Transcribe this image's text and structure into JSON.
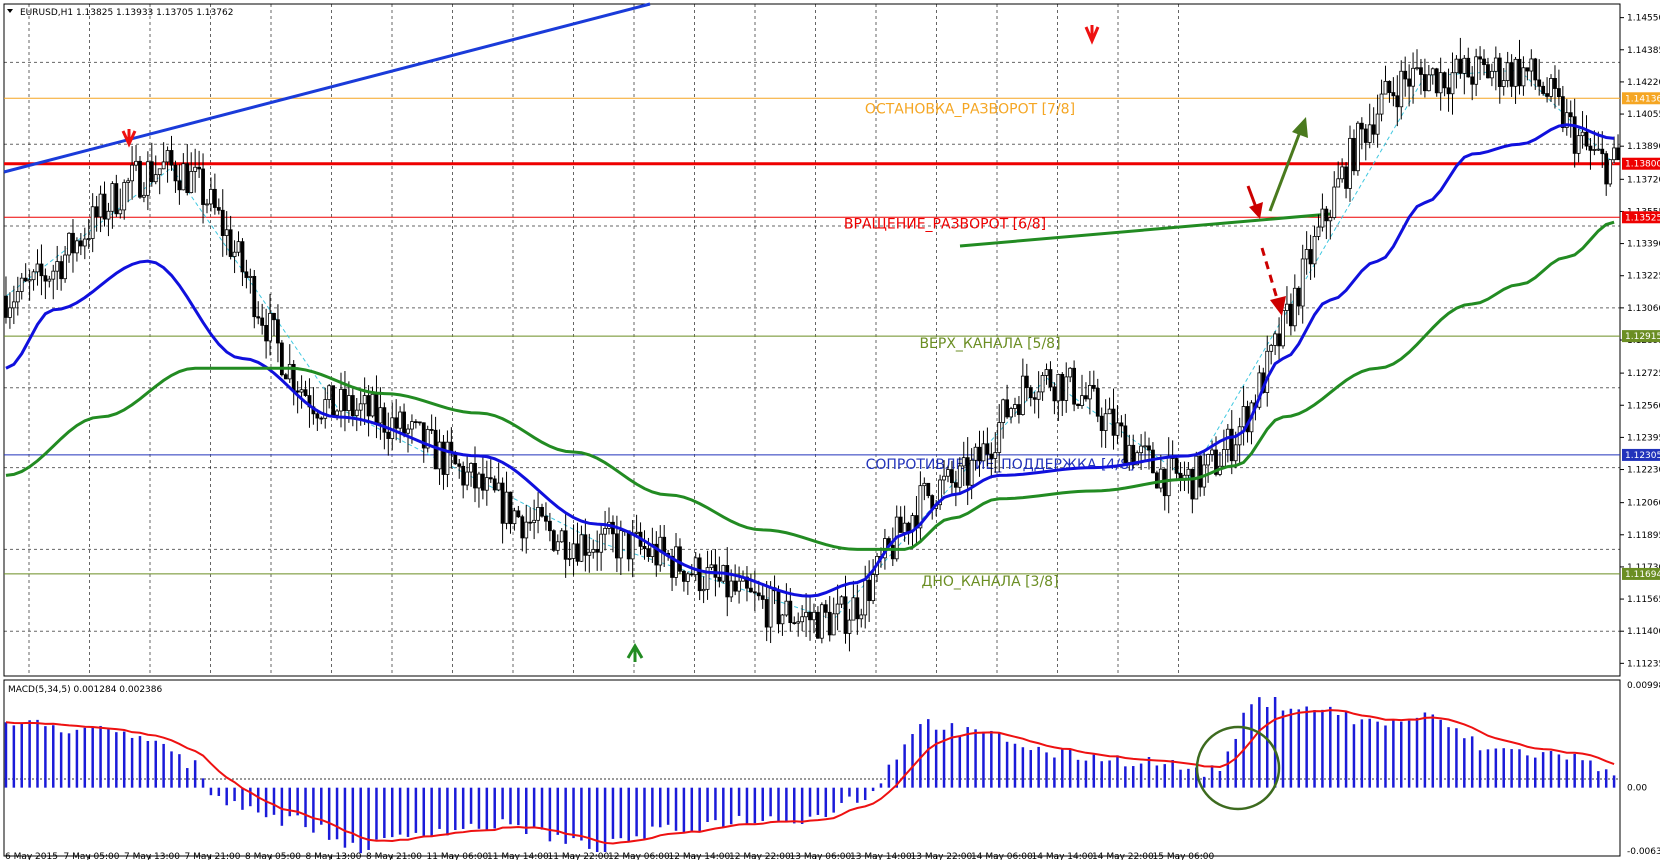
{
  "window": {
    "symbol_info": "EURUSD,H1  1.13825 1.13933 1.13705 1.13762"
  },
  "chart_data": {
    "type": "candlestick",
    "symbol": "EURUSD",
    "timeframe": "H1",
    "ohlc_header": {
      "open": 1.13825,
      "high": 1.13933,
      "low": 1.13705,
      "close": 1.13762
    },
    "ylim": [
      1.1117,
      1.1462
    ],
    "price_ticks": [
      "1.14550",
      "1.14385",
      "1.14220",
      "1.14055",
      "1.13890",
      "1.13720",
      "1.13555",
      "1.13390",
      "1.13225",
      "1.13060",
      "1.12895",
      "1.12725",
      "1.12560",
      "1.12395",
      "1.12230",
      "1.12060",
      "1.11895",
      "1.11730",
      "1.11565",
      "1.11400",
      "1.11235"
    ],
    "time_ticks": [
      "6 May 2015",
      "7 May 05:00",
      "7 May 13:00",
      "7 May 21:00",
      "8 May 05:00",
      "8 May 13:00",
      "8 May 21:00",
      "11 May 06:00",
      "11 May 14:00",
      "11 May 22:00",
      "12 May 06:00",
      "12 May 14:00",
      "12 May 22:00",
      "13 May 06:00",
      "13 May 14:00",
      "13 May 22:00",
      "14 May 06:00",
      "14 May 14:00",
      "14 May 22:00",
      "15 May 06:00"
    ],
    "grid": true,
    "levels": [
      {
        "price": 1.14136,
        "tag": "1.14136",
        "label": "ОСТАНОВКА_РАЗВОРОТ [7/8]",
        "color": "#f5a623"
      },
      {
        "price": 1.138,
        "tag": "1.13800",
        "label": "",
        "color": "#ee0000"
      },
      {
        "price": 1.13525,
        "tag": "1.13525",
        "label": "ВРАЩЕНИЕ_РАЗВОРОТ [6/8]",
        "color": "#ee0000"
      },
      {
        "price": 1.12915,
        "tag": "1.12915",
        "label": "ВЕРХ_КАНАЛА [5/8]",
        "color": "#6b8e23"
      },
      {
        "price": 1.12305,
        "tag": "1.12305",
        "label": "СОПРОТИВЛЕНИЕ_ПОДДЕРЖКА [4/8]",
        "color": "#2233bb"
      },
      {
        "price": 1.11694,
        "tag": "1.11694",
        "label": "ДНО_КАНАЛА [3/8]",
        "color": "#6b8e23"
      }
    ],
    "series": [
      {
        "color": "#1010dd",
        "anchors": [
          [
            0,
            1.1275
          ],
          [
            12,
            1.1305
          ],
          [
            36,
            1.133
          ],
          [
            60,
            1.128
          ],
          [
            84,
            1.125
          ],
          [
            120,
            1.123
          ],
          [
            150,
            1.1195
          ],
          [
            180,
            1.117
          ],
          [
            204,
            1.1158
          ],
          [
            216,
            1.1165
          ],
          [
            228,
            1.119
          ],
          [
            240,
            1.121
          ],
          [
            252,
            1.122
          ],
          [
            276,
            1.1224
          ],
          [
            300,
            1.123
          ],
          [
            312,
            1.124
          ],
          [
            324,
            1.128
          ],
          [
            336,
            1.131
          ],
          [
            348,
            1.133
          ],
          [
            360,
            1.136
          ],
          [
            372,
            1.1385
          ],
          [
            384,
            1.139
          ],
          [
            396,
            1.14
          ],
          [
            408,
            1.1393
          ]
        ]
      },
      {
        "color": "#228b22",
        "anchors": [
          [
            0,
            1.122
          ],
          [
            24,
            1.125
          ],
          [
            48,
            1.1275
          ],
          [
            72,
            1.1275
          ],
          [
            96,
            1.1262
          ],
          [
            120,
            1.1252
          ],
          [
            144,
            1.1232
          ],
          [
            168,
            1.121
          ],
          [
            192,
            1.1192
          ],
          [
            216,
            1.1182
          ],
          [
            228,
            1.1182
          ],
          [
            240,
            1.1198
          ],
          [
            252,
            1.1208
          ],
          [
            276,
            1.1212
          ],
          [
            300,
            1.1218
          ],
          [
            312,
            1.1225
          ],
          [
            324,
            1.125
          ],
          [
            348,
            1.1275
          ],
          [
            372,
            1.1308
          ],
          [
            384,
            1.1318
          ],
          [
            396,
            1.1332
          ],
          [
            408,
            1.135
          ]
        ]
      }
    ],
    "swings": [
      [
        0,
        1.1312
      ],
      [
        42,
        1.1378
      ],
      [
        84,
        1.1255
      ],
      [
        150,
        1.1186
      ],
      [
        210,
        1.1146
      ],
      [
        240,
        1.1215
      ],
      [
        264,
        1.127
      ],
      [
        300,
        1.1218
      ],
      [
        360,
        1.1425
      ],
      [
        384,
        1.1428
      ],
      [
        408,
        1.138
      ]
    ],
    "candle_count": 410,
    "macd": {
      "label": "MACD(5,34,5) 0.001284 0.002386",
      "ylim": [
        -0.006333,
        0.009981
      ],
      "ticks": [
        "0.009981",
        "0.00",
        "-0.006333"
      ],
      "anchors": [
        [
          0,
          0.006
        ],
        [
          18,
          0.0055
        ],
        [
          36,
          0.0045
        ],
        [
          48,
          0.002
        ],
        [
          54,
          -0.001
        ],
        [
          72,
          -0.003
        ],
        [
          90,
          -0.0055
        ],
        [
          108,
          -0.004
        ],
        [
          126,
          -0.0035
        ],
        [
          150,
          -0.0055
        ],
        [
          168,
          -0.004
        ],
        [
          186,
          -0.003
        ],
        [
          204,
          -0.0028
        ],
        [
          216,
          -0.001
        ],
        [
          234,
          0.006
        ],
        [
          246,
          0.005
        ],
        [
          270,
          0.003
        ],
        [
          288,
          0.0025
        ],
        [
          306,
          0.0015
        ],
        [
          318,
          0.008
        ],
        [
          330,
          0.0075
        ],
        [
          348,
          0.006
        ],
        [
          360,
          0.0065
        ],
        [
          378,
          0.0035
        ],
        [
          396,
          0.003
        ],
        [
          408,
          0.0012
        ]
      ]
    },
    "macd_tick_label": "0.00"
  }
}
